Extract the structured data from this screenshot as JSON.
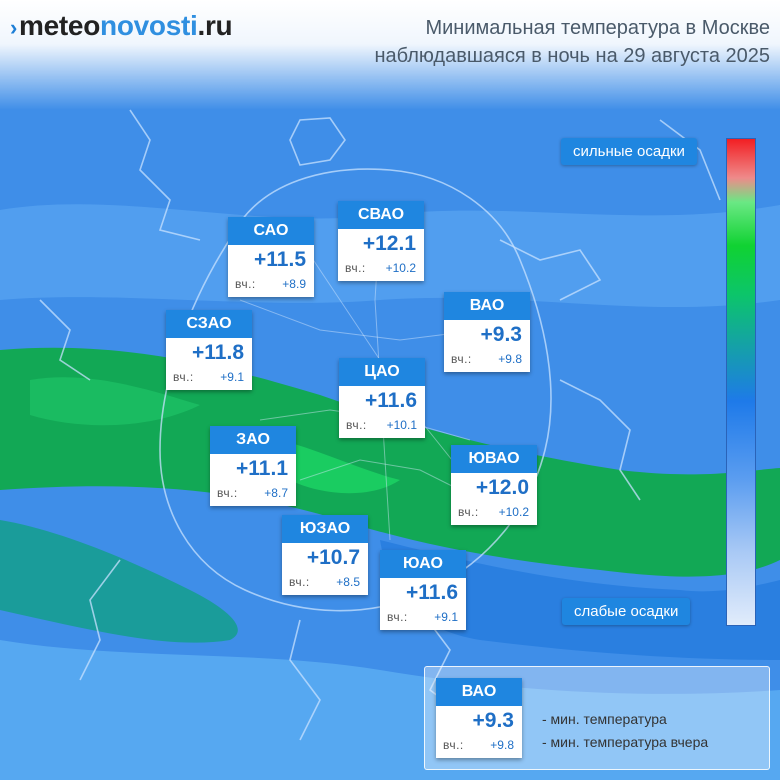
{
  "logo": {
    "part1": "meteo",
    "part2": "novosti",
    "part3": ".ru"
  },
  "title": {
    "line1": "Минимальная температура в Москве",
    "line2": "наблюдавшаяся в ночь на 29 августа 2025"
  },
  "scale": {
    "top_label": "сильные осадки",
    "bottom_label": "слабые осадки"
  },
  "yesterday_prefix": "вч.:",
  "districts": [
    {
      "name": "САО",
      "temp": "+11.5",
      "yesterday": "+8.9"
    },
    {
      "name": "СВАО",
      "temp": "+12.1",
      "yesterday": "+10.2"
    },
    {
      "name": "ВАО",
      "temp": "+9.3",
      "yesterday": "+9.8"
    },
    {
      "name": "СЗАО",
      "temp": "+11.8",
      "yesterday": "+9.1"
    },
    {
      "name": "ЦАО",
      "temp": "+11.6",
      "yesterday": "+10.1"
    },
    {
      "name": "ЗАО",
      "temp": "+11.1",
      "yesterday": "+8.7"
    },
    {
      "name": "ЮВАО",
      "temp": "+12.0",
      "yesterday": "+10.2"
    },
    {
      "name": "ЮЗАО",
      "temp": "+10.7",
      "yesterday": "+8.5"
    },
    {
      "name": "ЮАО",
      "temp": "+11.6",
      "yesterday": "+9.1"
    }
  ],
  "legend": {
    "sample_name": "ВАО",
    "sample_temp": "+9.3",
    "sample_yesterday": "+9.8",
    "line_min_temp": "- мин. температура",
    "line_min_temp_yesterday": "- мин. температура вчера"
  },
  "colors": {
    "marker_blue": "#1f86e0",
    "temp_text": "#1f6fc6",
    "precip_heavy": "#f21f23",
    "precip_medium": "#10d232",
    "precip_light": "#e1ecfb"
  }
}
